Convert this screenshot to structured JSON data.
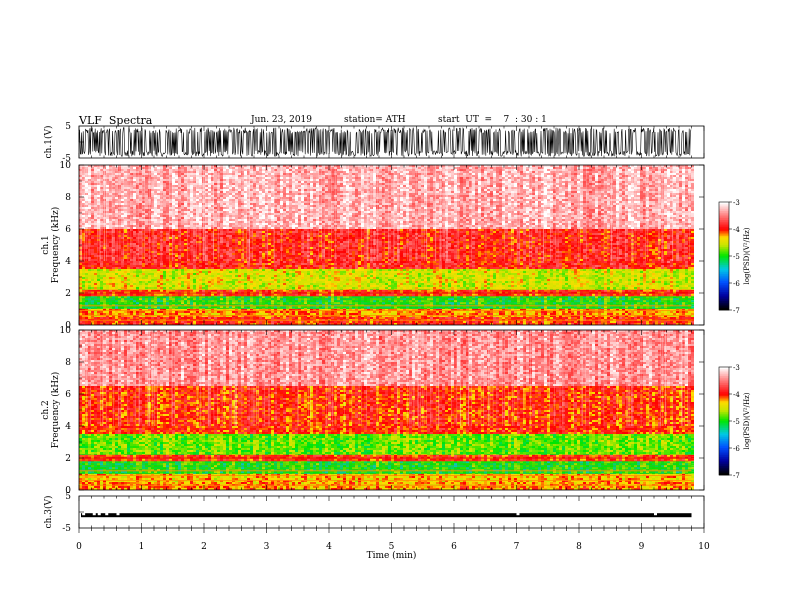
{
  "header": {
    "title": "VLF  Spectra",
    "date": "Jun. 23, 2019",
    "station": "station= ATH",
    "start": "start  UT  =    7  : 30 : 1"
  },
  "panels": {
    "ch1_wave": {
      "ylabel": "ch.1(V)",
      "yticks": [
        "5",
        "-5"
      ]
    },
    "ch1_spec": {
      "ylabel_line1": "ch.1",
      "ylabel_line2": "Frequency  (kHz)",
      "yticks": [
        "10",
        "8",
        "6",
        "4",
        "2",
        "0"
      ]
    },
    "ch2_spec": {
      "ylabel_line1": "ch.2",
      "ylabel_line2": "Frequency  (kHz)",
      "yticks": [
        "10",
        "8",
        "6",
        "4",
        "2",
        "0"
      ]
    },
    "ch3_wave": {
      "ylabel": "ch.3(V)",
      "yticks": [
        "5",
        "-5"
      ]
    }
  },
  "colorbar": {
    "label": "log(PSD)(V²/Hz)",
    "ticks": [
      "-3",
      "-4",
      "-5",
      "-6",
      "-7"
    ]
  },
  "xaxis": {
    "label": "Time  (min)",
    "ticks": [
      "0",
      "1",
      "2",
      "3",
      "4",
      "5",
      "6",
      "7",
      "8",
      "9",
      "10"
    ]
  },
  "chart_data": {
    "type": "heatmap",
    "title": "VLF  Spectra",
    "xlabel": "Time  (min)",
    "xlim": [
      0,
      10
    ],
    "data_end_min": 9.8,
    "channels": [
      {
        "name": "ch.1",
        "ylabel": "Frequency  (kHz)",
        "ylim": [
          0,
          10
        ],
        "bands": [
          {
            "f_min": 0.0,
            "f_max": 0.5,
            "log_psd": -4.0
          },
          {
            "f_min": 0.5,
            "f_max": 1.0,
            "log_psd": -4.2
          },
          {
            "f_min": 1.0,
            "f_max": 1.8,
            "log_psd": -5.0
          },
          {
            "f_min": 1.8,
            "f_max": 2.2,
            "log_psd": -4.0
          },
          {
            "f_min": 2.2,
            "f_max": 3.5,
            "log_psd": -4.5
          },
          {
            "f_min": 3.5,
            "f_max": 6.0,
            "log_psd": -3.9
          },
          {
            "f_min": 6.0,
            "f_max": 10.0,
            "log_psd": -3.3
          }
        ]
      },
      {
        "name": "ch.2",
        "ylabel": "Frequency  (kHz)",
        "ylim": [
          0,
          10
        ],
        "bands": [
          {
            "f_min": 0.0,
            "f_max": 0.5,
            "log_psd": -4.2
          },
          {
            "f_min": 0.5,
            "f_max": 1.0,
            "log_psd": -4.3
          },
          {
            "f_min": 1.0,
            "f_max": 1.8,
            "log_psd": -5.0
          },
          {
            "f_min": 1.8,
            "f_max": 2.2,
            "log_psd": -4.0
          },
          {
            "f_min": 2.2,
            "f_max": 3.5,
            "log_psd": -4.8
          },
          {
            "f_min": 3.5,
            "f_max": 6.5,
            "log_psd": -4.0
          },
          {
            "f_min": 6.5,
            "f_max": 10.0,
            "log_psd": -3.4
          }
        ]
      }
    ],
    "waveforms": [
      {
        "name": "ch.1(V)",
        "ylim": [
          -5,
          5
        ],
        "amplitude": 4.5
      },
      {
        "name": "ch.3(V)",
        "ylim": [
          -5,
          5
        ],
        "level": -1.0
      }
    ],
    "colorscale": {
      "label": "log(PSD)(V²/Hz)",
      "range": [
        -7,
        -3
      ]
    }
  }
}
